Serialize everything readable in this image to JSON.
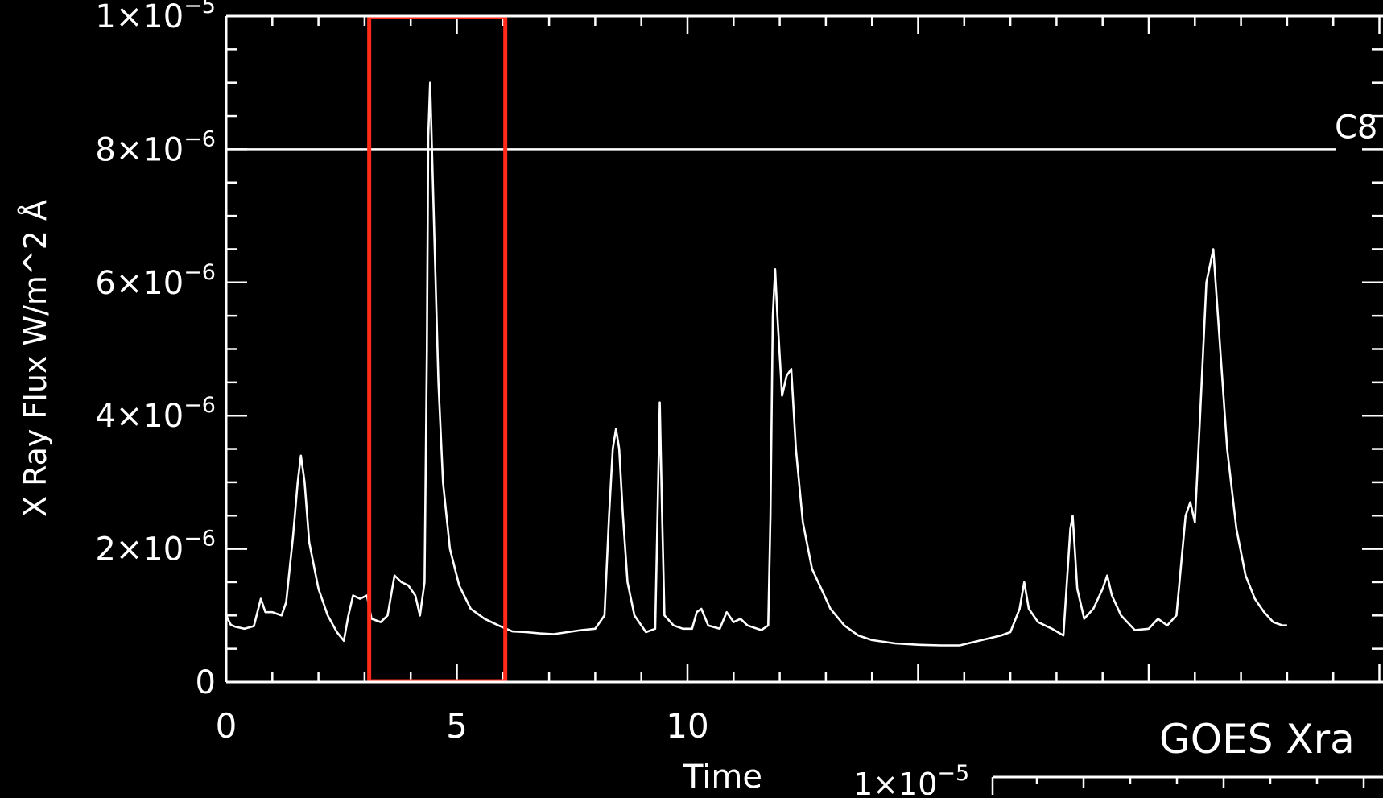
{
  "chart_data": {
    "type": "line",
    "xlabel": "Time",
    "ylabel": "X Ray Flux W/m^2  Å",
    "xlim": [
      0,
      24
    ],
    "ylim": [
      0,
      1e-05
    ],
    "x_ticks": [
      {
        "value": 0,
        "label": "0"
      },
      {
        "value": 5,
        "label": "5"
      },
      {
        "value": 10,
        "label": "10"
      }
    ],
    "y_ticks": [
      {
        "value": 0,
        "mant": "0",
        "exp": ""
      },
      {
        "value": 2e-06,
        "mant": "2×10",
        "exp": "−6"
      },
      {
        "value": 4e-06,
        "mant": "4×10",
        "exp": "−6"
      },
      {
        "value": 6e-06,
        "mant": "6×10",
        "exp": "−6"
      },
      {
        "value": 8e-06,
        "mant": "8×10",
        "exp": "−6"
      },
      {
        "value": 1e-05,
        "mant": "1×10",
        "exp": "−5"
      }
    ],
    "threshold": {
      "value": 8e-06,
      "label": "C8"
    },
    "highlight": {
      "x_start": 3.1,
      "x_end": 6.05,
      "color": "#ff2a1a"
    },
    "series": [
      {
        "color": "#ffffff",
        "points": [
          [
            0.0,
            1e-06
          ],
          [
            0.1,
            8.6e-07
          ],
          [
            0.2,
            8.3e-07
          ],
          [
            0.4,
            8e-07
          ],
          [
            0.6,
            8.4e-07
          ],
          [
            0.75,
            1.25e-06
          ],
          [
            0.85,
            1.05e-06
          ],
          [
            1.0,
            1.05e-06
          ],
          [
            1.2,
            1e-06
          ],
          [
            1.3,
            1.2e-06
          ],
          [
            1.45,
            2.2e-06
          ],
          [
            1.55,
            3e-06
          ],
          [
            1.62,
            3.4e-06
          ],
          [
            1.7,
            3e-06
          ],
          [
            1.8,
            2.1e-06
          ],
          [
            2.0,
            1.4e-06
          ],
          [
            2.2,
            1e-06
          ],
          [
            2.4,
            7.5e-07
          ],
          [
            2.55,
            6.2e-07
          ],
          [
            2.65,
            1e-06
          ],
          [
            2.75,
            1.3e-06
          ],
          [
            2.9,
            1.25e-06
          ],
          [
            3.05,
            1.3e-06
          ],
          [
            3.15,
            9.5e-07
          ],
          [
            3.35,
            9e-07
          ],
          [
            3.5,
            1e-06
          ],
          [
            3.65,
            1.6e-06
          ],
          [
            3.8,
            1.5e-06
          ],
          [
            3.95,
            1.45e-06
          ],
          [
            4.1,
            1.3e-06
          ],
          [
            4.2,
            1e-06
          ],
          [
            4.3,
            1.5e-06
          ],
          [
            4.35,
            5e-06
          ],
          [
            4.38,
            8.2e-06
          ],
          [
            4.42,
            9e-06
          ],
          [
            4.46,
            8e-06
          ],
          [
            4.52,
            6.5e-06
          ],
          [
            4.6,
            4.5e-06
          ],
          [
            4.7,
            3e-06
          ],
          [
            4.85,
            2e-06
          ],
          [
            5.05,
            1.45e-06
          ],
          [
            5.3,
            1.1e-06
          ],
          [
            5.6,
            9.5e-07
          ],
          [
            5.9,
            8.5e-07
          ],
          [
            6.2,
            7.6e-07
          ],
          [
            6.5,
            7.5e-07
          ],
          [
            6.8,
            7.3e-07
          ],
          [
            7.1,
            7.2e-07
          ],
          [
            7.4,
            7.5e-07
          ],
          [
            7.7,
            7.8e-07
          ],
          [
            8.0,
            8e-07
          ],
          [
            8.2,
            1e-06
          ],
          [
            8.3,
            2.5e-06
          ],
          [
            8.38,
            3.5e-06
          ],
          [
            8.45,
            3.8e-06
          ],
          [
            8.52,
            3.5e-06
          ],
          [
            8.6,
            2.5e-06
          ],
          [
            8.7,
            1.5e-06
          ],
          [
            8.85,
            1e-06
          ],
          [
            9.1,
            7.5e-07
          ],
          [
            9.3,
            8e-07
          ],
          [
            9.35,
            2.5e-06
          ],
          [
            9.4,
            4.2e-06
          ],
          [
            9.45,
            2.5e-06
          ],
          [
            9.5,
            1e-06
          ],
          [
            9.7,
            8.5e-07
          ],
          [
            9.9,
            8e-07
          ],
          [
            10.1,
            8e-07
          ],
          [
            10.2,
            1.05e-06
          ],
          [
            10.3,
            1.1e-06
          ],
          [
            10.45,
            8.5e-07
          ],
          [
            10.7,
            8e-07
          ],
          [
            10.85,
            1.05e-06
          ],
          [
            11.0,
            9e-07
          ],
          [
            11.15,
            9.5e-07
          ],
          [
            11.3,
            8.5e-07
          ],
          [
            11.6,
            7.8e-07
          ],
          [
            11.75,
            8.5e-07
          ],
          [
            11.8,
            2.5e-06
          ],
          [
            11.85,
            5.5e-06
          ],
          [
            11.9,
            6.2e-06
          ],
          [
            11.95,
            5.5e-06
          ],
          [
            12.05,
            4.3e-06
          ],
          [
            12.15,
            4.6e-06
          ],
          [
            12.25,
            4.7e-06
          ],
          [
            12.35,
            3.5e-06
          ],
          [
            12.5,
            2.4e-06
          ],
          [
            12.7,
            1.7e-06
          ],
          [
            12.9,
            1.4e-06
          ],
          [
            13.1,
            1.1e-06
          ],
          [
            13.4,
            8.5e-07
          ],
          [
            13.7,
            7e-07
          ],
          [
            14.0,
            6.3e-07
          ],
          [
            14.5,
            5.8e-07
          ],
          [
            15.0,
            5.6e-07
          ],
          [
            15.5,
            5.5e-07
          ],
          [
            15.9,
            5.5e-07
          ],
          [
            16.2,
            6e-07
          ],
          [
            16.5,
            6.5e-07
          ],
          [
            16.8,
            7e-07
          ],
          [
            17.0,
            7.5e-07
          ],
          [
            17.2,
            1.1e-06
          ],
          [
            17.3,
            1.5e-06
          ],
          [
            17.4,
            1.1e-06
          ],
          [
            17.6,
            9e-07
          ],
          [
            17.9,
            8e-07
          ],
          [
            18.15,
            7e-07
          ],
          [
            18.3,
            2.3e-06
          ],
          [
            18.35,
            2.5e-06
          ],
          [
            18.45,
            1.4e-06
          ],
          [
            18.6,
            9.5e-07
          ],
          [
            18.8,
            1.1e-06
          ],
          [
            19.0,
            1.4e-06
          ],
          [
            19.1,
            1.6e-06
          ],
          [
            19.2,
            1.3e-06
          ],
          [
            19.4,
            1e-06
          ],
          [
            19.7,
            7.8e-07
          ],
          [
            20.0,
            8e-07
          ],
          [
            20.2,
            9.5e-07
          ],
          [
            20.4,
            8.5e-07
          ],
          [
            20.6,
            1e-06
          ],
          [
            20.8,
            2.5e-06
          ],
          [
            20.9,
            2.7e-06
          ],
          [
            21.0,
            2.4e-06
          ],
          [
            21.1,
            3.8e-06
          ],
          [
            21.25,
            6e-06
          ],
          [
            21.4,
            6.5e-06
          ],
          [
            21.55,
            5e-06
          ],
          [
            21.7,
            3.5e-06
          ],
          [
            21.9,
            2.3e-06
          ],
          [
            22.1,
            1.6e-06
          ],
          [
            22.3,
            1.25e-06
          ],
          [
            22.5,
            1.05e-06
          ],
          [
            22.7,
            9e-07
          ],
          [
            22.9,
            8.5e-07
          ],
          [
            23.0,
            8.5e-07
          ]
        ]
      }
    ],
    "inset": {
      "title": "GOES Xra",
      "y_tick": {
        "mant": "1×10",
        "exp": "−5"
      }
    }
  }
}
